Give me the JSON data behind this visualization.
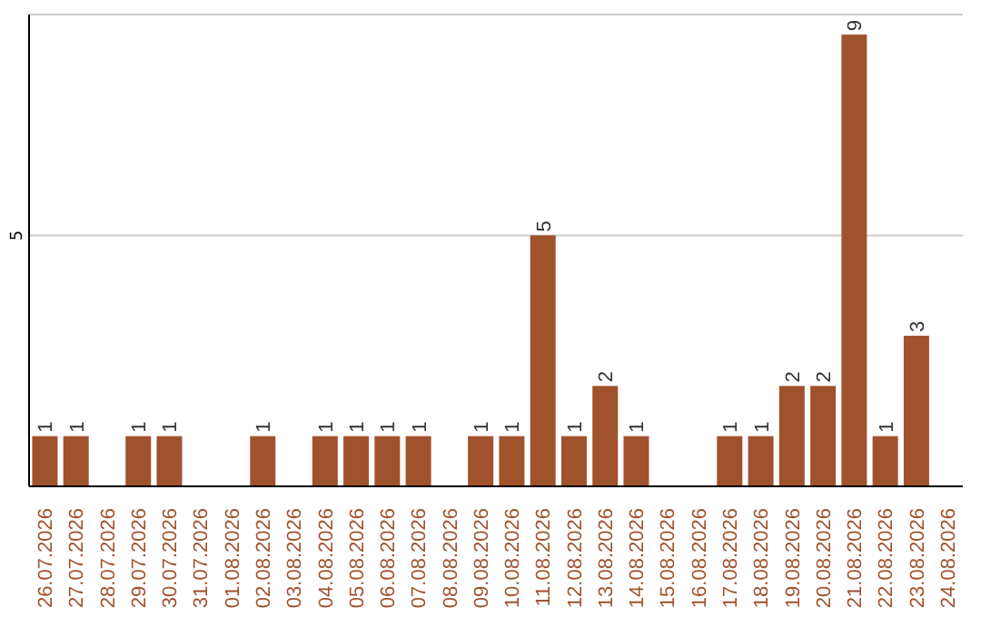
{
  "chart_data": {
    "type": "bar",
    "categories": [
      "26.07.2026",
      "27.07.2026",
      "28.07.2026",
      "29.07.2026",
      "30.07.2026",
      "31.07.2026",
      "01.08.2026",
      "02.08.2026",
      "03.08.2026",
      "04.08.2026",
      "05.08.2026",
      "06.08.2026",
      "07.08.2026",
      "08.08.2026",
      "09.08.2026",
      "10.08.2026",
      "11.08.2026",
      "12.08.2026",
      "13.08.2026",
      "14.08.2026",
      "15.08.2026",
      "16.08.2026",
      "17.08.2026",
      "18.08.2026",
      "19.08.2026",
      "20.08.2026",
      "21.08.2026",
      "22.08.2026",
      "23.08.2026",
      "24.08.2026"
    ],
    "values": [
      1,
      1,
      0,
      1,
      1,
      0,
      0,
      1,
      0,
      1,
      1,
      1,
      1,
      0,
      1,
      1,
      5,
      1,
      2,
      1,
      0,
      0,
      1,
      1,
      2,
      2,
      9,
      1,
      3,
      0
    ],
    "value_labels": [
      "1",
      "1",
      null,
      "1",
      "1",
      null,
      null,
      "1",
      null,
      "1",
      "1",
      "1",
      "1",
      null,
      "1",
      "1",
      "5",
      "1",
      "2",
      "1",
      null,
      null,
      "1",
      "1",
      "2",
      "2",
      "9",
      "1",
      "3",
      null
    ],
    "color": "#a0522d",
    "ylim": [
      0,
      9.4
    ],
    "yticks": [
      5
    ],
    "grid": "y"
  }
}
